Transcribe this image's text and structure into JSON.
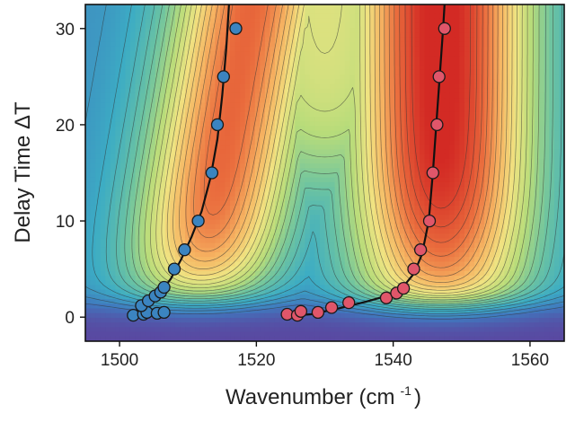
{
  "chart_data": {
    "type": "contour-scatter",
    "xlabel": "Wavenumber (cm",
    "xlabel_sup": "-1",
    "xlabel_close": ")",
    "ylabel": "Delay Time ΔT",
    "xlim": [
      1495,
      1565
    ],
    "ylim": [
      -2.5,
      32.5
    ],
    "xticks": [
      1500,
      1520,
      1540,
      1560
    ],
    "yticks": [
      0,
      10,
      20,
      30
    ],
    "grid": false,
    "colors": {
      "low": "#5a47a0",
      "mid": "#b8dc7a",
      "high": "#d32a24",
      "series_blue": "#3b84c0",
      "series_red": "#e0566a",
      "contour": "#333333"
    },
    "contour_levels": 22,
    "series": [
      {
        "color": "#3b84c0",
        "points": [
          [
            1502,
            0.2
          ],
          [
            1503.5,
            0.3
          ],
          [
            1504,
            0.5
          ],
          [
            1505.5,
            0.4
          ],
          [
            1506.5,
            0.5
          ],
          [
            1503.2,
            1.2
          ],
          [
            1504.2,
            1.7
          ],
          [
            1505.2,
            2.2
          ],
          [
            1506,
            2.6
          ],
          [
            1506.5,
            3.1
          ],
          [
            1508,
            5
          ],
          [
            1509.5,
            7
          ],
          [
            1511.5,
            10
          ],
          [
            1513.5,
            15
          ],
          [
            1514.3,
            20
          ],
          [
            1515.2,
            25
          ],
          [
            1517,
            30
          ]
        ],
        "fit": [
          [
            1502,
            0
          ],
          [
            1503,
            0.8
          ],
          [
            1504.5,
            1.6
          ],
          [
            1506,
            2.6
          ],
          [
            1507.5,
            4
          ],
          [
            1509,
            6
          ],
          [
            1510.5,
            8.3
          ],
          [
            1512,
            11
          ],
          [
            1513.3,
            14.5
          ],
          [
            1514.3,
            18.5
          ],
          [
            1515,
            23
          ],
          [
            1515.6,
            28
          ],
          [
            1516,
            32.5
          ]
        ]
      },
      {
        "color": "#e0566a",
        "points": [
          [
            1524.5,
            0.3
          ],
          [
            1526,
            0.2
          ],
          [
            1526.5,
            0.6
          ],
          [
            1529,
            0.5
          ],
          [
            1531,
            1
          ],
          [
            1533.5,
            1.5
          ],
          [
            1539,
            2
          ],
          [
            1540.5,
            2.5
          ],
          [
            1541.5,
            3
          ],
          [
            1543,
            5
          ],
          [
            1544,
            7
          ],
          [
            1545.3,
            10
          ],
          [
            1545.8,
            15
          ],
          [
            1546.4,
            20
          ],
          [
            1546.7,
            25
          ],
          [
            1547.5,
            30
          ]
        ],
        "fit": [
          [
            1524,
            0.1
          ],
          [
            1528,
            0.3
          ],
          [
            1532,
            0.9
          ],
          [
            1536,
            1.6
          ],
          [
            1539.5,
            2.3
          ],
          [
            1541.5,
            3.2
          ],
          [
            1543,
            4.5
          ],
          [
            1544.2,
            6.5
          ],
          [
            1545.2,
            10
          ],
          [
            1545.8,
            15
          ],
          [
            1546.3,
            20
          ],
          [
            1546.8,
            25
          ],
          [
            1547.3,
            30
          ],
          [
            1547.5,
            32.5
          ]
        ]
      }
    ]
  }
}
